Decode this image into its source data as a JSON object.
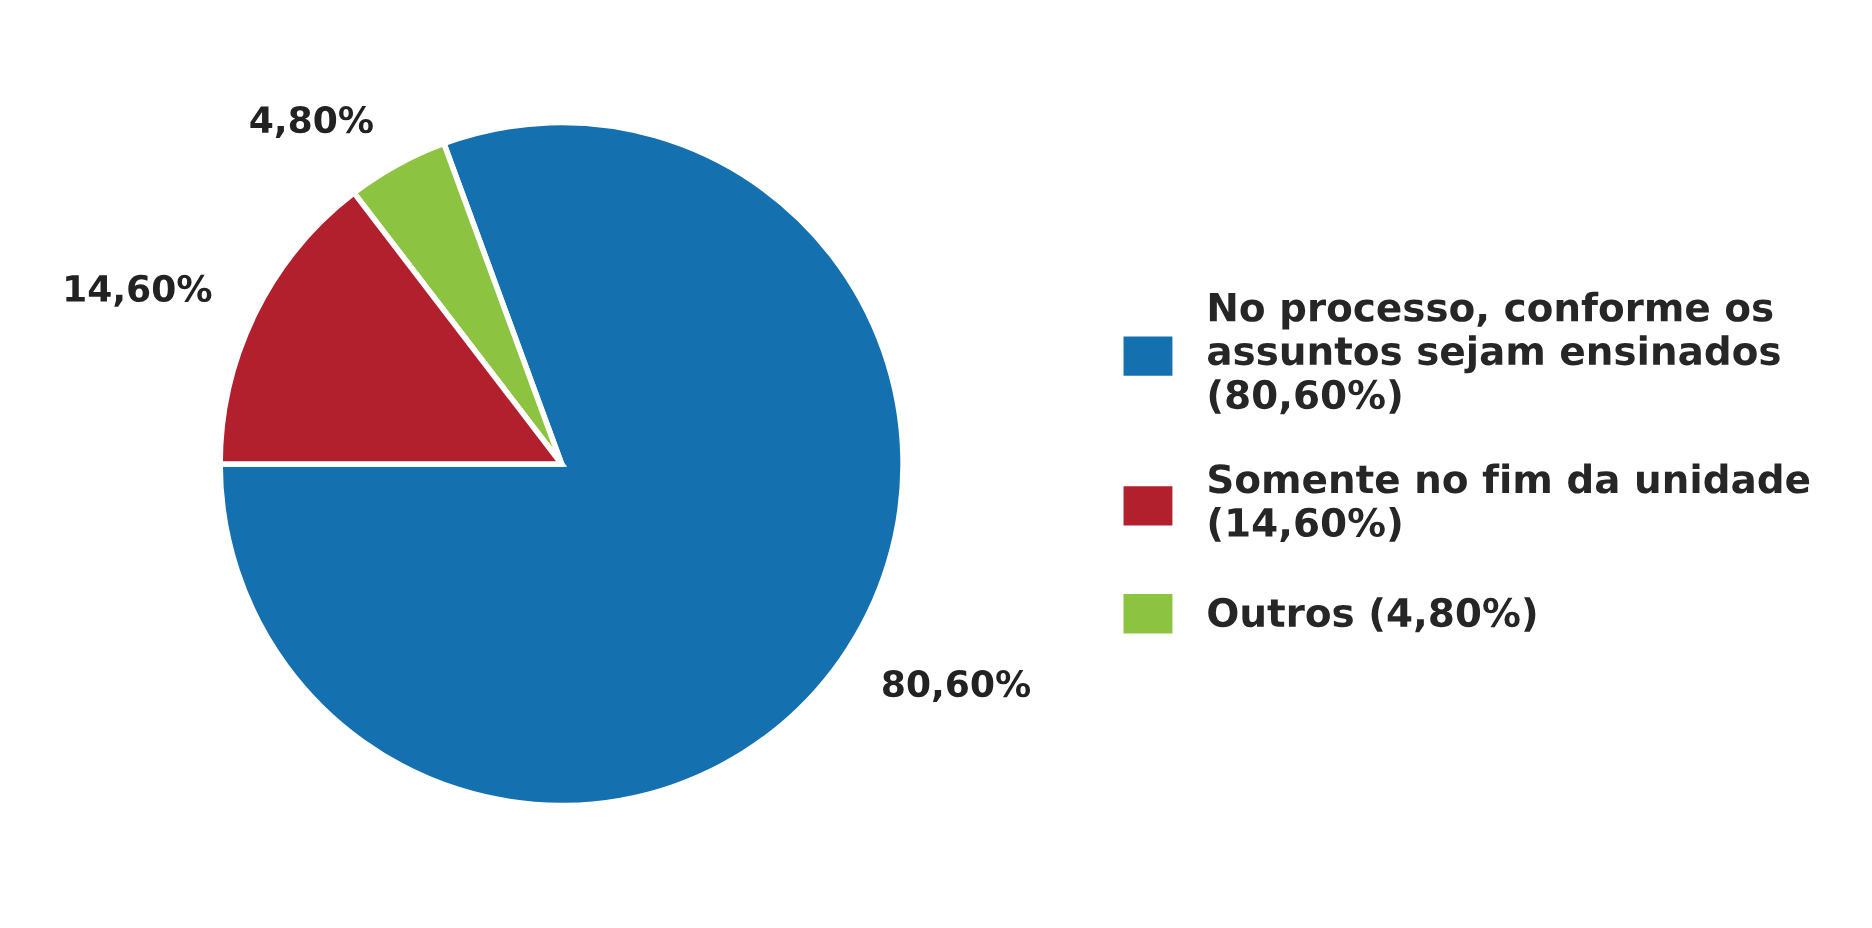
{
  "chart_data": {
    "type": "pie",
    "categories": [
      "No processo, conforme os\nassuntos sejam ensinados\n(80,60%)",
      "Somente no fim da unidade\n(14,60%)",
      "Outros (4,80%)"
    ],
    "values": [
      80.6,
      14.6,
      4.8
    ],
    "value_labels": [
      "80,60%",
      "14,60%",
      "4,80%"
    ],
    "colors": [
      "#1570b0",
      "#b2202e",
      "#8cc340"
    ],
    "legend": "right"
  }
}
